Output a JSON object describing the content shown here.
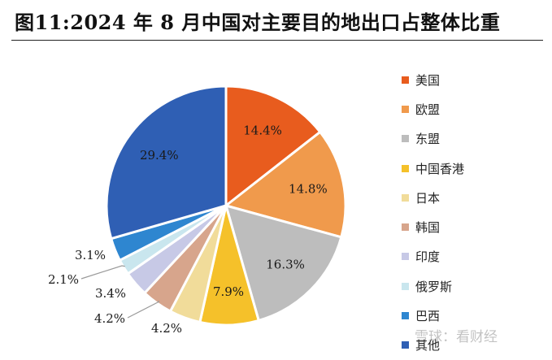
{
  "title": "图11:2024 年 8 月中国对主要目的地出口占整体比重",
  "watermark": "雪球：看财经",
  "chart_data": {
    "type": "pie",
    "slices": [
      {
        "name": "美国",
        "value": 14.4,
        "label": "14.4%",
        "color": "#E85C1E"
      },
      {
        "name": "欧盟",
        "value": 14.8,
        "label": "14.8%",
        "color": "#F09A4C"
      },
      {
        "name": "东盟",
        "value": 16.3,
        "label": "16.3%",
        "color": "#BDBDBD"
      },
      {
        "name": "中国香港",
        "value": 7.9,
        "label": "7.9%",
        "color": "#F5C12A"
      },
      {
        "name": "日本",
        "value": 4.2,
        "label": "4.2%",
        "color": "#F1DC9A"
      },
      {
        "name": "韩国",
        "value": 4.2,
        "label": "4.2%",
        "color": "#D7A58C"
      },
      {
        "name": "印度",
        "value": 3.4,
        "label": "3.4%",
        "color": "#C7C9E6"
      },
      {
        "name": "俄罗斯",
        "value": 2.1,
        "label": "2.1%",
        "color": "#C9E6EE"
      },
      {
        "name": "巴西",
        "value": 3.1,
        "label": "3.1%",
        "color": "#2E86D0"
      },
      {
        "name": "其他",
        "value": 29.4,
        "label": "29.4%",
        "color": "#2F5FB4"
      }
    ],
    "legend_position": "right"
  }
}
